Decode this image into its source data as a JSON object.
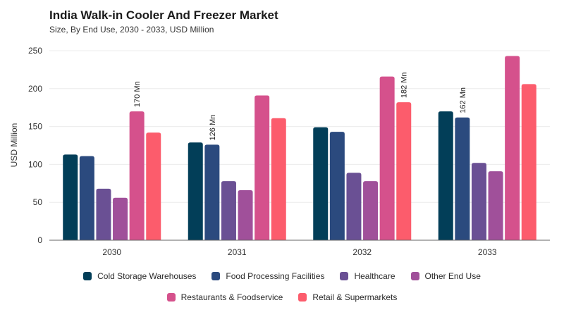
{
  "chart_data": {
    "type": "bar",
    "title": "India Walk-in Cooler And Freezer Market",
    "subtitle": "Size, By End Use, 2030 - 2033, USD Million",
    "xlabel": "",
    "ylabel": "USD Million",
    "ylim": [
      0,
      250
    ],
    "yticks": [
      "0",
      "50",
      "100",
      "150",
      "200",
      "250"
    ],
    "categories": [
      "2030",
      "2031",
      "2032",
      "2033"
    ],
    "series": [
      {
        "name": "Cold Storage Warehouses",
        "color": "#023e58",
        "values": [
          113,
          129,
          149,
          170
        ]
      },
      {
        "name": "Food Processing Facilities",
        "color": "#2b4a7e",
        "values": [
          111,
          126,
          143,
          162
        ]
      },
      {
        "name": "Healthcare",
        "color": "#6a5094",
        "values": [
          68,
          78,
          89,
          102
        ]
      },
      {
        "name": "Other End Use",
        "color": "#a0509a",
        "values": [
          56,
          66,
          78,
          91
        ]
      },
      {
        "name": "Restaurants & Foodservice",
        "color": "#d5518c",
        "values": [
          170,
          191,
          216,
          243
        ]
      },
      {
        "name": "Retail & Supermarkets",
        "color": "#fc5c6c",
        "values": [
          142,
          161,
          182,
          206
        ]
      }
    ],
    "annotations": [
      {
        "category": "2030",
        "series": "Restaurants & Foodservice",
        "text": "170 Mn"
      },
      {
        "category": "2031",
        "series": "Food Processing Facilities",
        "text": "126 Mn"
      },
      {
        "category": "2032",
        "series": "Retail & Supermarkets",
        "text": "182 Mn"
      },
      {
        "category": "2033",
        "series": "Food Processing Facilities",
        "text": "162 Mn"
      }
    ],
    "grid": true,
    "legend_position": "bottom"
  }
}
